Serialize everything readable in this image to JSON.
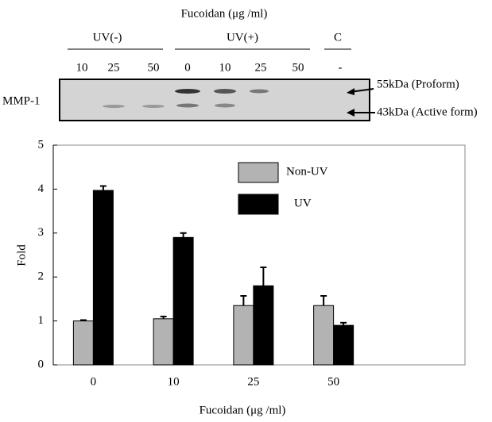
{
  "blot": {
    "title": "Fucoidan (μg /ml)",
    "groups": [
      "UV(-)",
      "UV(+)",
      "C"
    ],
    "lanes": [
      "10",
      "25",
      "50",
      "0",
      "10",
      "25",
      "50",
      "-"
    ],
    "protein": "MMP-1",
    "markers": [
      "55kDa (Proform)",
      "43kDa (Active form)"
    ]
  },
  "chart_data": {
    "type": "bar",
    "x_label": "Fucoidan (μg /ml)",
    "y_label": "Fold",
    "categories": [
      "0",
      "10",
      "25",
      "50"
    ],
    "series": [
      {
        "name": "Non-UV",
        "color": "#b3b3b3",
        "values": [
          1.0,
          1.05,
          1.35,
          1.35
        ],
        "errors": [
          0.02,
          0.05,
          0.22,
          0.22
        ]
      },
      {
        "name": "UV",
        "color": "#000000",
        "values": [
          3.97,
          2.9,
          1.8,
          0.9
        ],
        "errors": [
          0.1,
          0.1,
          0.42,
          0.06
        ]
      }
    ],
    "ylim": [
      0,
      5
    ],
    "yticks": [
      0,
      1,
      2,
      3,
      4,
      5
    ],
    "grid": false,
    "legend": "top-right"
  }
}
